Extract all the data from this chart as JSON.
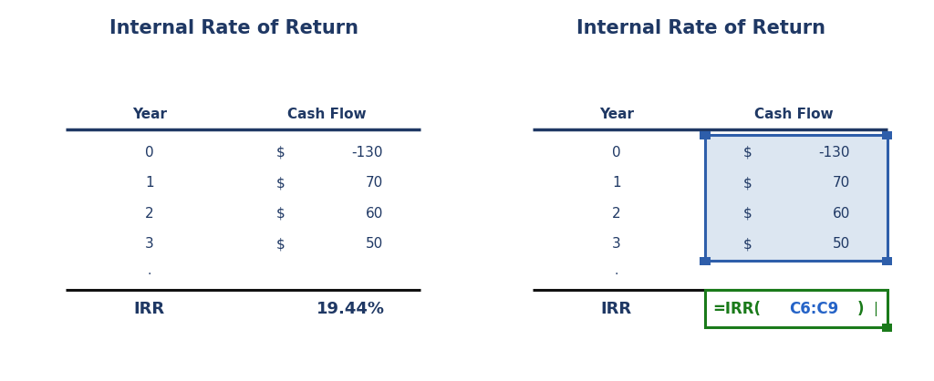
{
  "title": "Internal Rate of Return",
  "bg_color": "#ffffff",
  "title_color": "#1F3864",
  "title_fontsize": 15,
  "header_color": "#1F3864",
  "data_color": "#1F3864",
  "years": [
    "0",
    "1",
    "2",
    "3"
  ],
  "cash_flow_signs": [
    "$",
    "$",
    "$",
    "$"
  ],
  "cash_flow_values": [
    "-130",
    "70",
    "60",
    "50"
  ],
  "irr_label": "IRR",
  "irr_value_left": "19.44%",
  "formula_color": "#1a7a1a",
  "ref_color": "#2563c7",
  "header_line_color": "#1F3864",
  "bottom_line_color": "#111111",
  "cell_highlight_color": "#dce6f1",
  "cell_border_color": "#2E5EAA",
  "formula_box_color": "#1a7a1a"
}
